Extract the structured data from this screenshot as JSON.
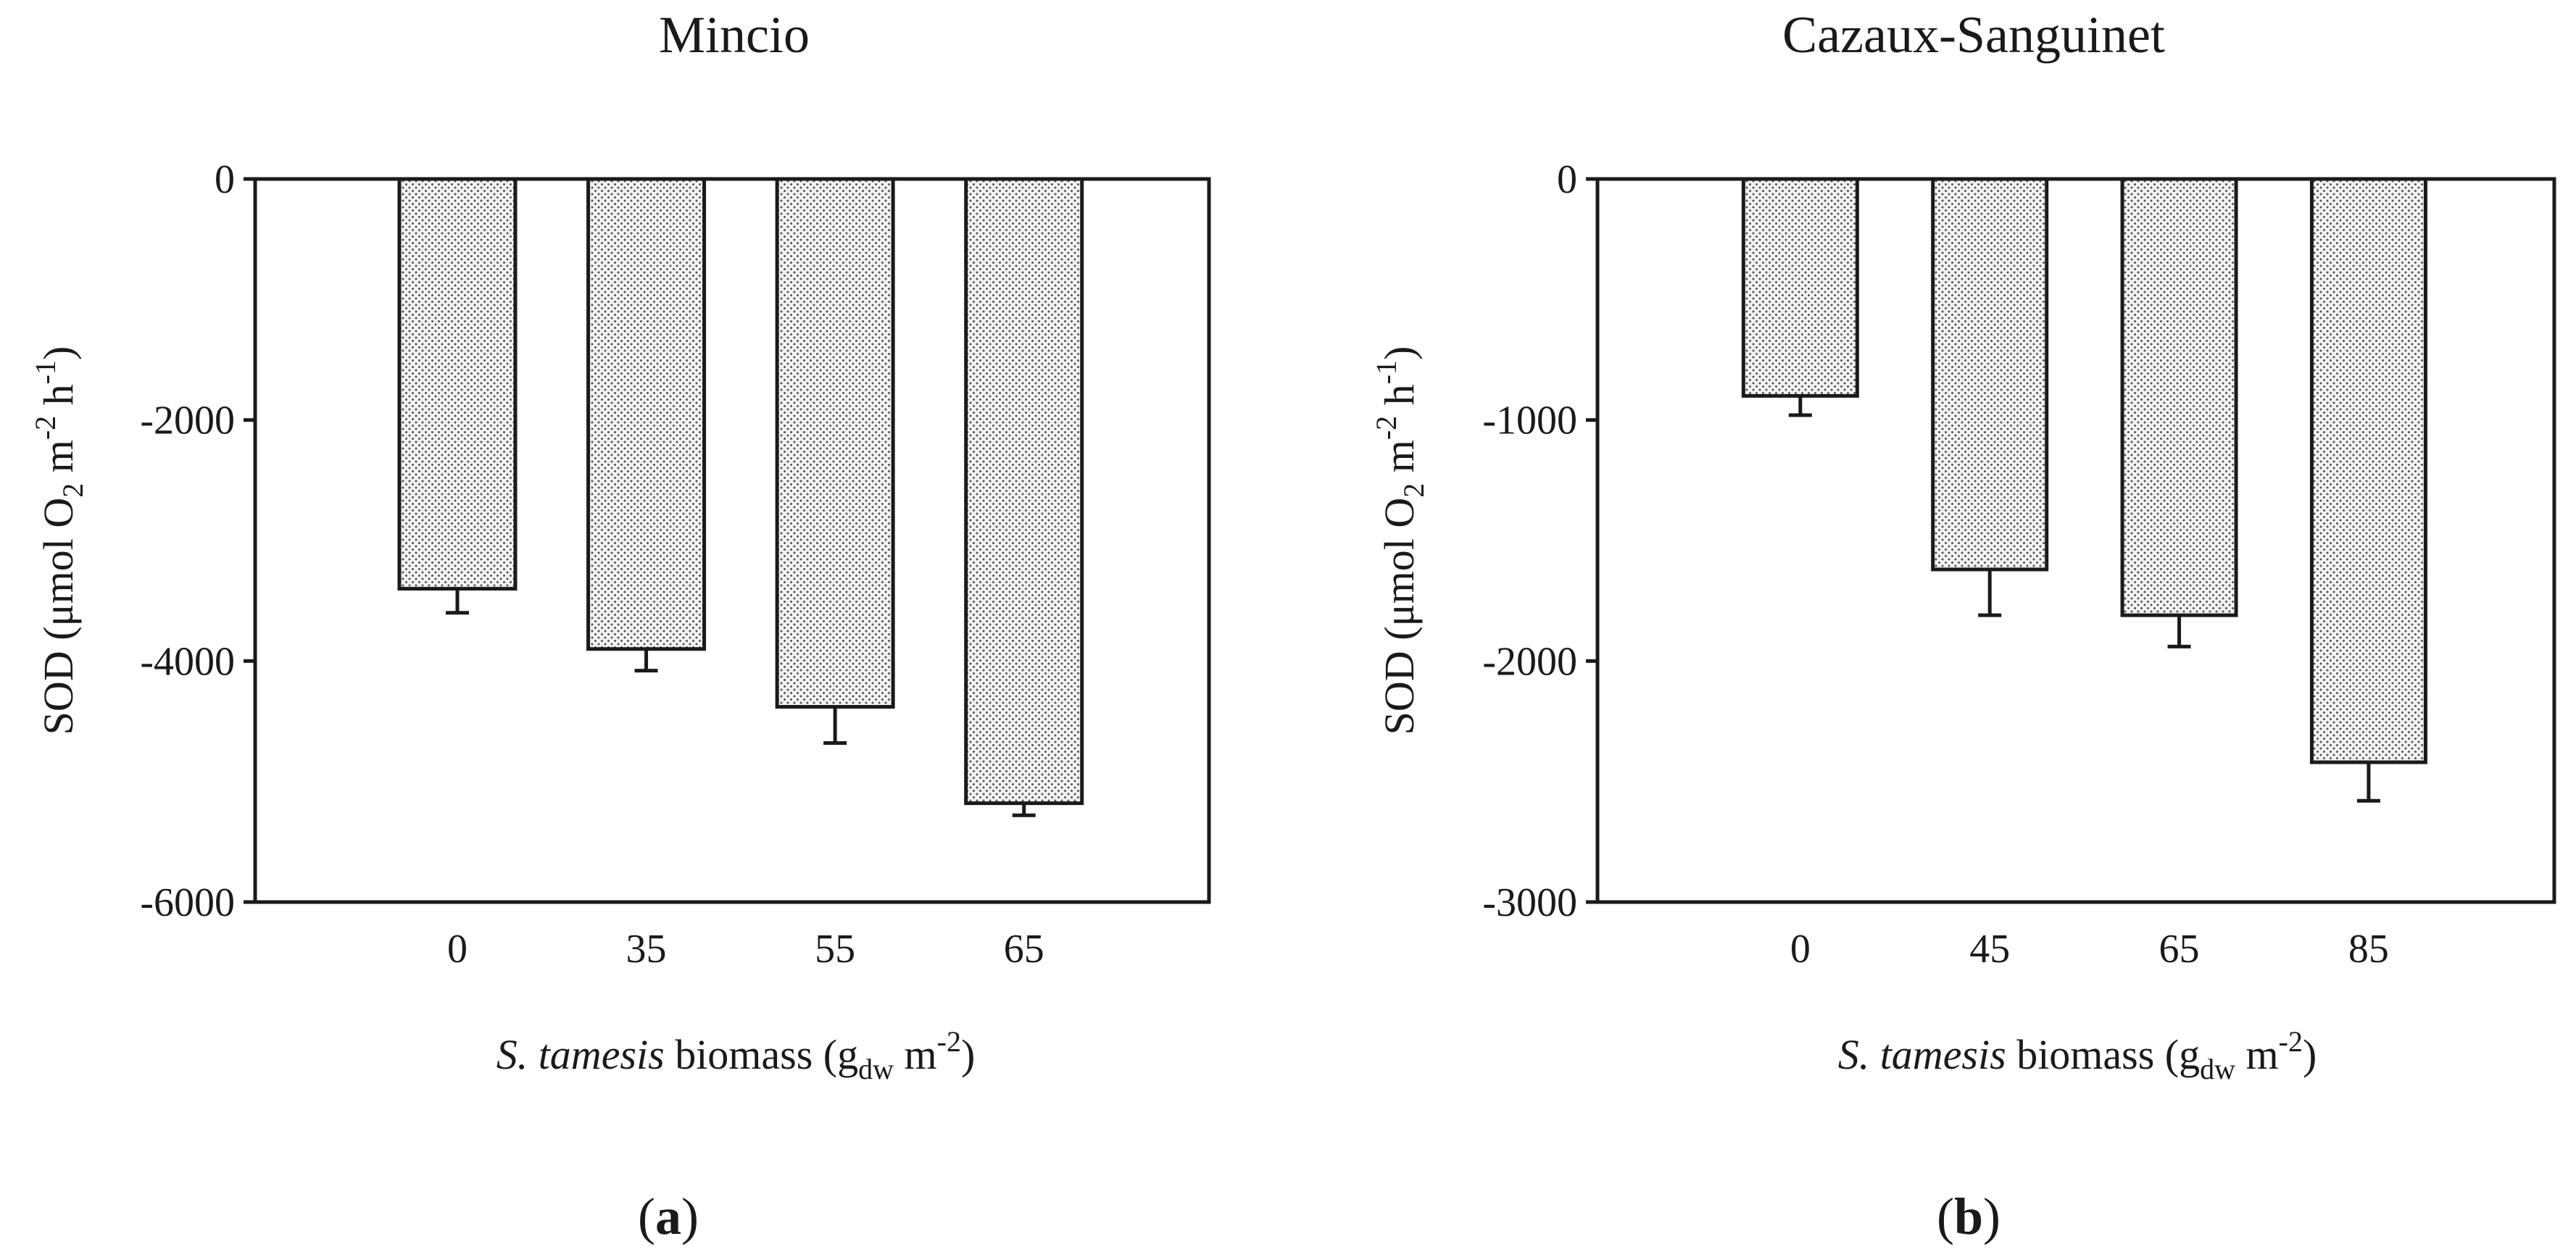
{
  "figure": {
    "panel_labels": [
      "a",
      "b"
    ]
  },
  "chart_data": [
    {
      "type": "bar",
      "title": "Mincio",
      "categories": [
        "0",
        "35",
        "55",
        "65"
      ],
      "values": [
        -3400,
        -3900,
        -4380,
        -5180
      ],
      "errors": [
        200,
        180,
        300,
        100
      ],
      "ylim": [
        -6000,
        0
      ],
      "yticks": [
        0,
        -2000,
        -4000,
        -6000
      ],
      "ylabel": {
        "pre": "SOD (μmol O",
        "sub": "2",
        "mid1": " m",
        "sup1": "-2",
        "mid2": " h",
        "sup2": "-1",
        "post": ")"
      },
      "xlabel": {
        "italic": "S. tamesis",
        "pre": " biomass (g",
        "sub": "dw",
        "mid": " m",
        "sup": "-2",
        "post": ")"
      },
      "grid": false
    },
    {
      "type": "bar",
      "title": "Cazaux-Sanguinet",
      "categories": [
        "0",
        "45",
        "65",
        "85"
      ],
      "values": [
        -900,
        -1620,
        -1810,
        -2420
      ],
      "errors": [
        80,
        190,
        130,
        160
      ],
      "ylim": [
        -3000,
        0
      ],
      "yticks": [
        0,
        -1000,
        -2000,
        -3000
      ],
      "ylabel": {
        "pre": "SOD (μmol O",
        "sub": "2",
        "mid1": " m",
        "sup1": "-2",
        "mid2": " h",
        "sup2": "-1",
        "post": ")"
      },
      "xlabel": {
        "italic": "S. tamesis",
        "pre": " biomass (g",
        "sub": "dw",
        "mid": " m",
        "sup": "-2",
        "post": ")"
      },
      "grid": false
    }
  ]
}
